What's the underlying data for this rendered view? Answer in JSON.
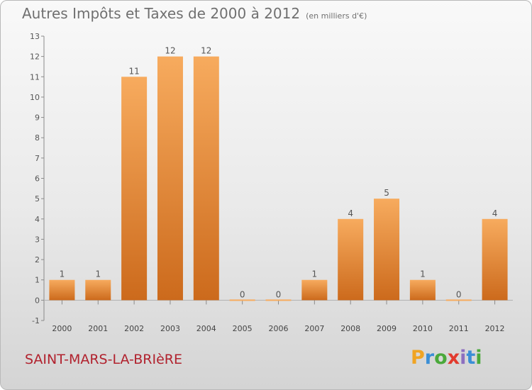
{
  "title": "Autres Impôts et Taxes de 2000 à 2012",
  "unit_note": "(en milliers d'€)",
  "commune": "SAINT-MARS-LA-BRIèRE",
  "logo": {
    "letters": [
      "P",
      "r",
      "o",
      "x",
      "i",
      "t",
      "i"
    ],
    "colors": [
      "#f0a423",
      "#3b8fd6",
      "#4aa93b",
      "#e23b2e",
      "#8d6fc0",
      "#3b8fd6",
      "#4aa93b"
    ]
  },
  "colors": {
    "bar_light": "#f7ab5e",
    "bar_dark": "#cc6a1c",
    "title": "#707070",
    "commune": "#b1222e"
  },
  "chart_data": {
    "type": "bar",
    "categories": [
      "2000",
      "2001",
      "2002",
      "2003",
      "2004",
      "2005",
      "2006",
      "2007",
      "2008",
      "2009",
      "2010",
      "2011",
      "2012"
    ],
    "values": [
      1,
      1,
      11,
      12,
      12,
      0,
      0,
      1,
      4,
      5,
      1,
      0,
      4
    ],
    "data_labels": [
      "1",
      "1",
      "11",
      "12",
      "12",
      "0",
      "0",
      "1",
      "4",
      "5",
      "1",
      "0",
      "4"
    ],
    "yticks": [
      -1,
      0,
      1,
      2,
      3,
      4,
      5,
      6,
      7,
      8,
      9,
      10,
      11,
      12,
      13
    ],
    "ylim": [
      -1,
      13
    ],
    "grid": false,
    "legend": false
  }
}
